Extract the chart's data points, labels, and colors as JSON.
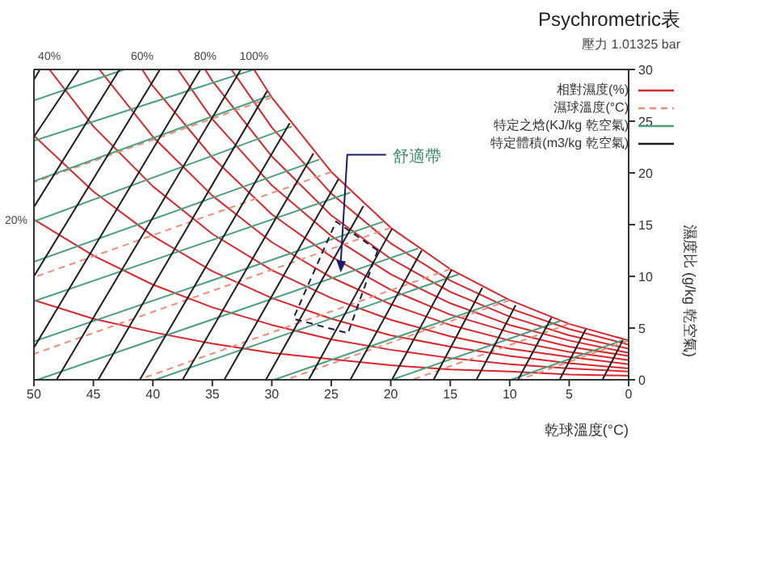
{
  "chart_data": {
    "type": "line",
    "title": "Psychrometric表",
    "subtitle": "壓力 1.01325 bar",
    "xlabel": "乾球溫度(°C)",
    "ylabel": "濕度比 (g/kg 乾空氣)",
    "xlim": [
      50,
      0
    ],
    "xticks": [
      0,
      5,
      10,
      15,
      20,
      25,
      30,
      35,
      40,
      45,
      50
    ],
    "ylim": [
      0,
      30
    ],
    "yticks": [
      0,
      5,
      10,
      15,
      20,
      25,
      30
    ],
    "legend": "top right",
    "marker": "none",
    "line_style": "solid",
    "annotations": [
      {
        "text": "舒適帶",
        "x": 24.2,
        "y": 10.5
      },
      {
        "text": "40%",
        "x": 48.7,
        "y": 30
      },
      {
        "text": "60%",
        "x": 40.9,
        "y": 30
      },
      {
        "text": "80%",
        "x": 35.6,
        "y": 30
      },
      {
        "text": "100%",
        "x": 31.5,
        "y": 30
      },
      {
        "text": "20%",
        "x": 50,
        "y": 15.5
      }
    ],
    "series": [
      {
        "name": "相對濕度(%)",
        "color": "#d7262c",
        "x": [
          0,
          5,
          10,
          15,
          20,
          25,
          30,
          31.5
        ],
        "values": [
          3.8,
          5.4,
          7.7,
          10.7,
          14.7,
          20.1,
          27.3,
          30
        ]
      },
      {
        "color": "#d7262c",
        "x": [
          0,
          5,
          10,
          15,
          20,
          25,
          30,
          33.4
        ],
        "values": [
          3.4,
          4.9,
          6.9,
          9.6,
          13.2,
          18,
          24.4,
          30
        ]
      },
      {
        "color": "#d7262c",
        "x": [
          0,
          5,
          10,
          15,
          20,
          25,
          30,
          35,
          35.6
        ],
        "values": [
          3,
          4.3,
          6.1,
          8.5,
          11.7,
          15.9,
          21.6,
          28.9,
          30
        ]
      },
      {
        "color": "#d7262c",
        "x": [
          0,
          5,
          10,
          15,
          20,
          25,
          30,
          35,
          37.9
        ],
        "values": [
          2.6,
          3.8,
          5.3,
          7.4,
          10.2,
          13.9,
          18.8,
          25.2,
          30
        ]
      },
      {
        "color": "#d7262c",
        "x": [
          0,
          5,
          10,
          15,
          20,
          25,
          30,
          35,
          40,
          40.9
        ],
        "values": [
          2.3,
          3.2,
          4.6,
          6.3,
          8.7,
          11.9,
          16,
          21.5,
          28.4,
          30
        ]
      },
      {
        "color": "#d7262c",
        "x": [
          0,
          5,
          10,
          15,
          20,
          25,
          30,
          35,
          40,
          44.5
        ],
        "values": [
          1.9,
          2.7,
          3.8,
          5.3,
          7.3,
          9.9,
          13.3,
          17.8,
          23.5,
          30
        ]
      },
      {
        "color": "#d7262c",
        "x": [
          0,
          5,
          10,
          15,
          20,
          25,
          30,
          35,
          40,
          45,
          48.7
        ],
        "values": [
          1.5,
          2.2,
          3,
          4.2,
          5.8,
          7.9,
          10.6,
          14.1,
          18.7,
          24.5,
          30
        ]
      },
      {
        "color": "#d7262c",
        "x": [
          0,
          5,
          10,
          15,
          20,
          25,
          30,
          35,
          40,
          45,
          50
        ],
        "values": [
          1.1,
          1.6,
          2.3,
          3.2,
          4.3,
          5.9,
          7.9,
          10.5,
          13.9,
          18.2,
          23.6
        ]
      },
      {
        "color": "#d7262c",
        "x": [
          0,
          5,
          10,
          15,
          20,
          25,
          30,
          35,
          40,
          45,
          50
        ],
        "values": [
          0.8,
          1.1,
          1.5,
          2.1,
          2.9,
          3.9,
          5.3,
          7,
          9.2,
          12,
          15.5
        ]
      },
      {
        "color": "#d7262c",
        "x": [
          0,
          5,
          10,
          15,
          20,
          25,
          30,
          35,
          40,
          45,
          50
        ],
        "values": [
          0.4,
          0.5,
          0.8,
          1,
          1.4,
          2,
          2.6,
          3.5,
          4.6,
          5.9,
          7.7
        ]
      },
      {
        "name": "濕球溫度(°C)",
        "color": "#ee8c78",
        "line_style": "dashed",
        "x": [
          0,
          9.2
        ],
        "values": [
          3.8,
          0
        ]
      },
      {
        "color": "#ee8c78",
        "line_style": "dashed",
        "x": [
          5,
          18.2
        ],
        "values": [
          5.4,
          0
        ]
      },
      {
        "color": "#ee8c78",
        "line_style": "dashed",
        "x": [
          10,
          28.8
        ],
        "values": [
          7.7,
          0
        ]
      },
      {
        "color": "#ee8c78",
        "line_style": "dashed",
        "x": [
          15,
          41.2
        ],
        "values": [
          10.7,
          0
        ]
      },
      {
        "color": "#ee8c78",
        "line_style": "dashed",
        "x": [
          20,
          50
        ],
        "values": [
          14.7,
          2.5
        ]
      },
      {
        "color": "#ee8c78",
        "line_style": "dashed",
        "x": [
          25,
          50
        ],
        "values": [
          20.1,
          9.9
        ]
      },
      {
        "color": "#ee8c78",
        "line_style": "dashed",
        "x": [
          30,
          50
        ],
        "values": [
          27.3,
          19.1
        ]
      },
      {
        "name": "特定之焓(KJ/kg 乾空氣)",
        "color": "#4c9e7c",
        "x": [
          0.3,
          9.9
        ],
        "values": [
          3.9,
          0
        ]
      },
      {
        "color": "#4c9e7c",
        "x": [
          5.7,
          19.9
        ],
        "values": [
          5.7,
          0
        ]
      },
      {
        "color": "#4c9e7c",
        "x": [
          10.3,
          29.8
        ],
        "values": [
          7.8,
          0
        ]
      },
      {
        "color": "#4c9e7c",
        "x": [
          14.3,
          39.8
        ],
        "values": [
          10.2,
          0
        ]
      },
      {
        "color": "#4c9e7c",
        "x": [
          17.7,
          49.7
        ],
        "values": [
          12.7,
          0
        ]
      },
      {
        "color": "#4c9e7c",
        "x": [
          20.6,
          50
        ],
        "values": [
          15.3,
          3.7
        ]
      },
      {
        "color": "#4c9e7c",
        "x": [
          23.4,
          50
        ],
        "values": [
          18.1,
          7.6
        ]
      },
      {
        "color": "#4c9e7c",
        "x": [
          26,
          50
        ],
        "values": [
          21.3,
          11.4
        ]
      },
      {
        "color": "#4c9e7c",
        "x": [
          28.3,
          50
        ],
        "values": [
          24.5,
          15.3
        ]
      },
      {
        "color": "#4c9e7c",
        "x": [
          30.1,
          50
        ],
        "values": [
          27.5,
          19.2
        ]
      },
      {
        "color": "#4c9e7c",
        "x": [
          31.5,
          50
        ],
        "values": [
          30,
          23.1
        ]
      },
      {
        "color": "#4c9e7c",
        "x": [
          42.4,
          50
        ],
        "values": [
          30,
          27
        ]
      },
      {
        "name": "特定體積(m3/kg 乾空氣)",
        "color": "#1e1e1e",
        "x": [
          0.5,
          2.2
        ],
        "values": [
          3.8,
          0
        ]
      },
      {
        "color": "#1e1e1e",
        "x": [
          3.6,
          5.8
        ],
        "values": [
          4.9,
          0
        ]
      },
      {
        "color": "#1e1e1e",
        "x": [
          6.5,
          9.3
        ],
        "values": [
          6,
          0
        ]
      },
      {
        "color": "#1e1e1e",
        "x": [
          9.5,
          12.8
        ],
        "values": [
          7.2,
          0
        ]
      },
      {
        "color": "#1e1e1e",
        "x": [
          12.3,
          16.4
        ],
        "values": [
          8.9,
          0
        ]
      },
      {
        "color": "#1e1e1e",
        "x": [
          14.9,
          19.9
        ],
        "values": [
          10.6,
          0
        ]
      },
      {
        "color": "#1e1e1e",
        "x": [
          17.4,
          23.4
        ],
        "values": [
          12.5,
          0
        ]
      },
      {
        "color": "#1e1e1e",
        "x": [
          19.9,
          26.9
        ],
        "values": [
          14.6,
          0
        ]
      },
      {
        "color": "#1e1e1e",
        "x": [
          22.3,
          30.5
        ],
        "values": [
          16.8,
          0
        ]
      },
      {
        "color": "#1e1e1e",
        "x": [
          24.4,
          34
        ],
        "values": [
          19.4,
          0
        ]
      },
      {
        "color": "#1e1e1e",
        "x": [
          26.5,
          37.5
        ],
        "values": [
          21.9,
          0
        ]
      },
      {
        "color": "#1e1e1e",
        "x": [
          28.5,
          41.1
        ],
        "values": [
          24.8,
          0
        ]
      },
      {
        "color": "#1e1e1e",
        "x": [
          30.4,
          44.6
        ],
        "values": [
          27.9,
          0
        ]
      },
      {
        "color": "#1e1e1e",
        "x": [
          32.6,
          48.1
        ],
        "values": [
          30,
          0
        ]
      },
      {
        "color": "#1e1e1e",
        "x": [
          36,
          50
        ],
        "values": [
          30,
          3.1
        ]
      },
      {
        "color": "#1e1e1e",
        "x": [
          39.4,
          50
        ],
        "values": [
          30,
          10
        ]
      },
      {
        "color": "#1e1e1e",
        "x": [
          42.8,
          50
        ],
        "values": [
          30,
          16.7
        ]
      },
      {
        "color": "#1e1e1e",
        "x": [
          46.2,
          50
        ],
        "values": [
          30,
          23.5
        ]
      },
      {
        "color": "#1e1e1e",
        "x": [
          49.5,
          50
        ],
        "values": [
          30,
          29
        ]
      },
      {
        "color": "#1a1a40",
        "line_style": "dashed",
        "x": [
          21.1,
          24.6,
          28.2
        ],
        "values": [
          12.5,
          15.3,
          5.9
        ]
      },
      {
        "color": "#1a1a40",
        "line_style": "dashed",
        "x": [
          21.1,
          23.6,
          28.2
        ],
        "values": [
          12.5,
          4.5,
          5.9
        ]
      }
    ]
  }
}
